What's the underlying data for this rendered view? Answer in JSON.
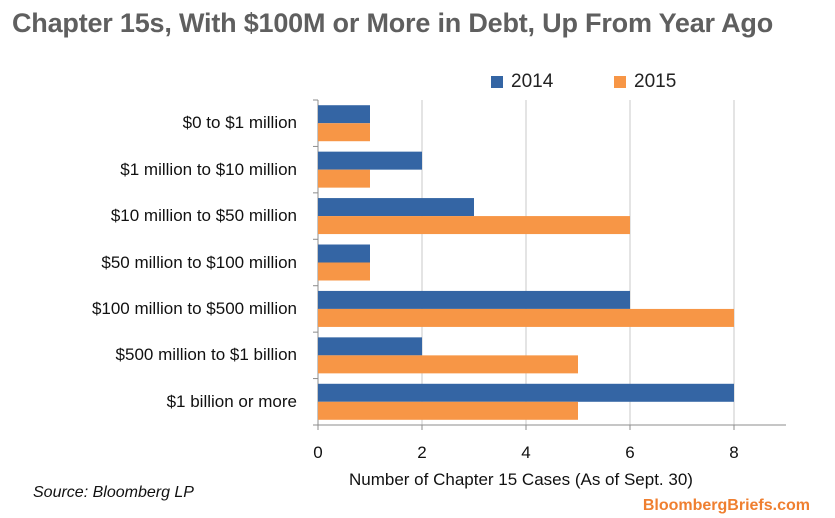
{
  "title": "Chapter 15s, With $100M or More in Debt, Up From Year Ago",
  "source": "Source: Bloomberg LP",
  "brand": "BloombergBriefs.com",
  "colors": {
    "2014": "#3465a4",
    "2015": "#f79646"
  },
  "chart_data": {
    "type": "bar",
    "orientation": "horizontal",
    "title": "Chapter 15s, With $100M or More in Debt, Up From Year Ago",
    "xlabel": "Number of Chapter 15 Cases (As of Sept. 30)",
    "ylabel": "",
    "xlim": [
      0,
      9
    ],
    "xticks": [
      "0",
      "2",
      "4",
      "6",
      "8"
    ],
    "grid": true,
    "legend": "top",
    "categories": [
      "$0 to $1 million",
      "$1 million to $10 million",
      "$10 million to $50 million",
      "$50 million to $100 million",
      "$100 million to $500 million",
      "$500 million to $1 billion",
      "$1 billion or more"
    ],
    "series": [
      {
        "name": "2014",
        "color": "#3465a4",
        "values": [
          1,
          2,
          3,
          1,
          6,
          2,
          8
        ]
      },
      {
        "name": "2015",
        "color": "#f79646",
        "values": [
          1,
          1,
          6,
          1,
          8,
          5,
          5
        ]
      }
    ]
  }
}
